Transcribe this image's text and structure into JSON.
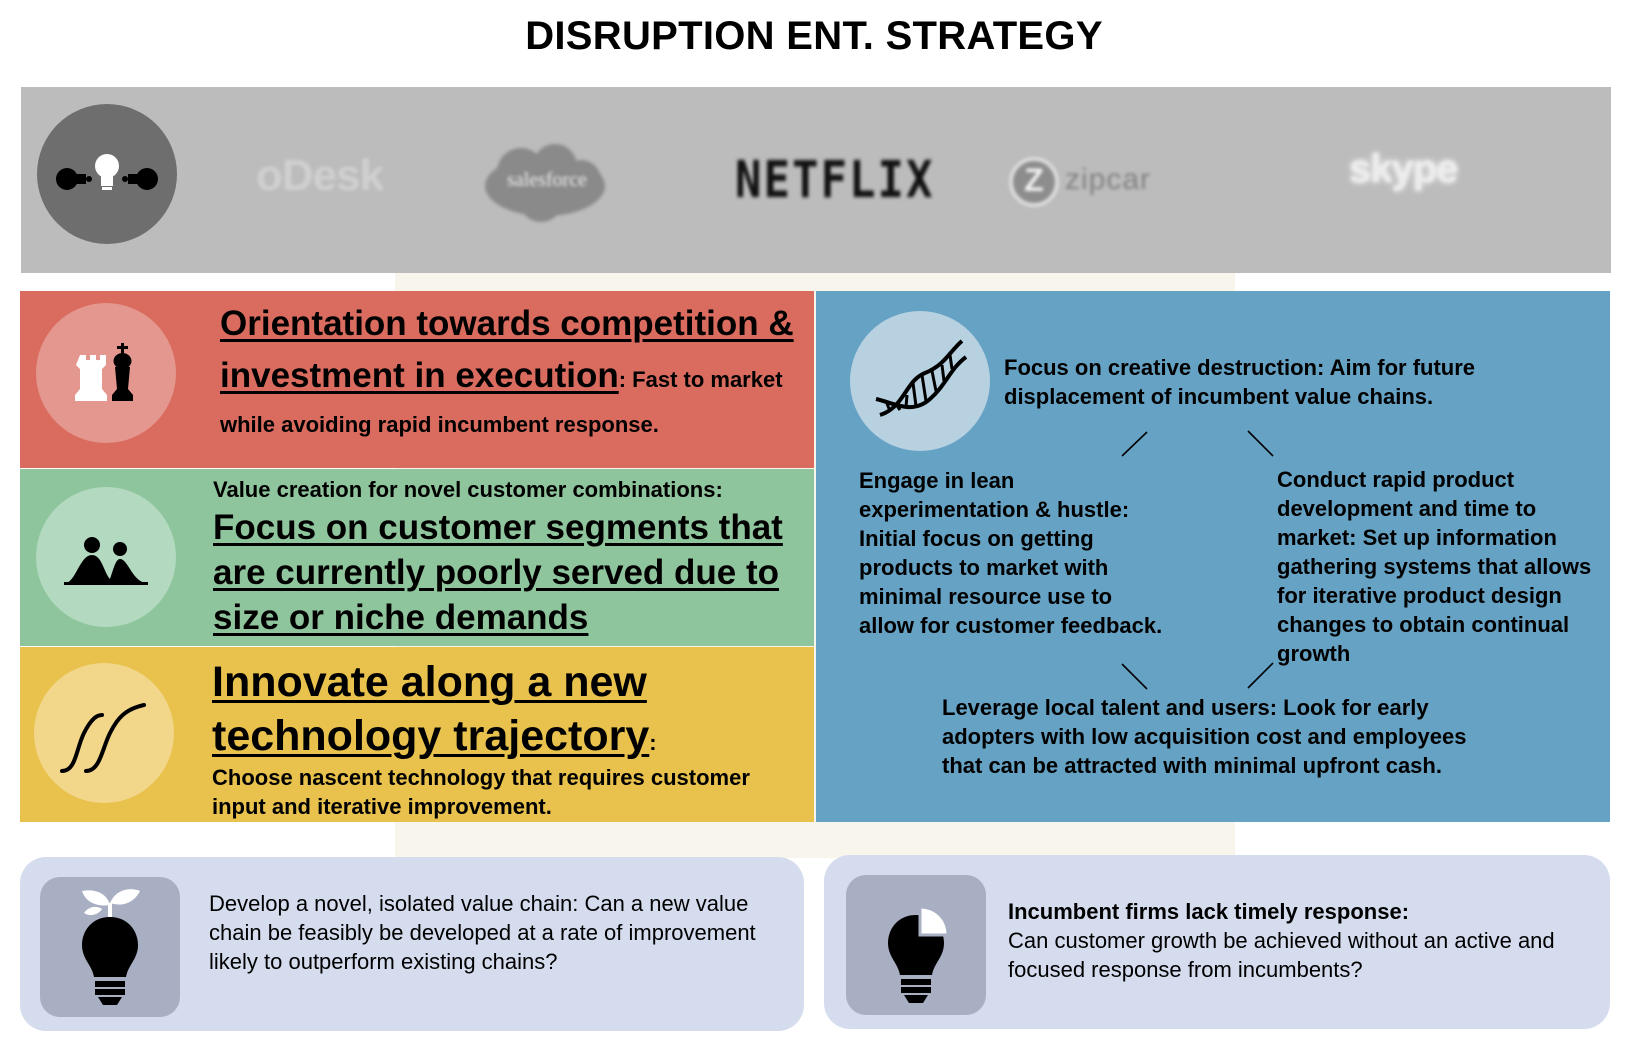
{
  "title": "DISRUPTION ENT. STRATEGY",
  "logos": {
    "odesk": "oDesk",
    "salesforce": "salesforce",
    "netflix": "NETFLIX",
    "zipcar_mark": "Z",
    "zipcar": "zipcar",
    "skype": "skype"
  },
  "icons": [
    "competition-icon",
    "chess-icon",
    "people-icon",
    "s-curve-icon",
    "dna-icon",
    "sprout-bulb-icon",
    "pie-bulb-icon"
  ],
  "colors": {
    "logo_band": "#bcbcbc",
    "red": "#da6b5f",
    "green": "#8fc59d",
    "yellow": "#e8c24c",
    "blue": "#65a2c4",
    "box": "#d4dcee"
  },
  "red_panel": {
    "heading": "Orientation towards competition & investment in execution",
    "detail": ": Fast to market while avoiding rapid incumbent response."
  },
  "green_panel": {
    "lead": "Value creation for novel customer combinations:",
    "heading": "Focus on customer segments that are currently poorly served due to size or niche demands "
  },
  "yellow_panel": {
    "heading": "Innovate along a new technology trajectory",
    "colon": ":",
    "detail": "Choose nascent technology that requires customer input and iterative improvement."
  },
  "blue_panel": {
    "top": "Focus on creative destruction: Aim for future displacement of incumbent value chains.",
    "left": "Engage in lean experimentation & hustle: Initial focus on getting products to market with minimal resource use to allow for customer feedback.",
    "right": "Conduct rapid product development and time to market: Set up information gathering systems that allows for iterative product design changes to obtain continual growth",
    "bottom": "Leverage local talent and users: Look for early adopters with low acquisition cost and employees that can be attracted with minimal upfront cash."
  },
  "box_left": {
    "text": "Develop a novel, isolated value chain:  Can a new value chain be feasibly be developed at a rate of improvement likely to outperform existing chains?"
  },
  "box_right": {
    "title": "Incumbent firms lack timely response:",
    "text": "Can customer growth be achieved without an active and focused response from incumbents?"
  }
}
